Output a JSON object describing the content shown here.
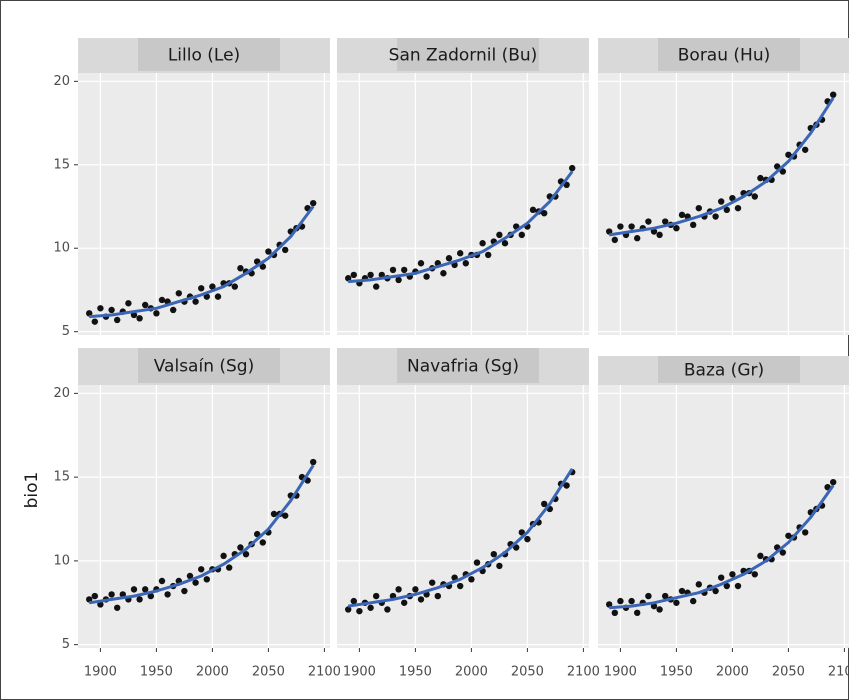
{
  "chart_data": [
    {
      "type": "scatter",
      "title": "Lillo (Le)",
      "x": [
        1890,
        1895,
        1900,
        1905,
        1910,
        1915,
        1920,
        1925,
        1930,
        1935,
        1940,
        1945,
        1950,
        1955,
        1960,
        1965,
        1970,
        1975,
        1980,
        1985,
        1990,
        1995,
        2000,
        2005,
        2010,
        2015,
        2020,
        2025,
        2030,
        2035,
        2040,
        2045,
        2050,
        2055,
        2060,
        2065,
        2070,
        2075,
        2080,
        2085,
        2090
      ],
      "values": [
        6.1,
        5.6,
        6.4,
        5.9,
        6.3,
        5.7,
        6.2,
        6.7,
        6.0,
        5.8,
        6.6,
        6.4,
        6.1,
        6.9,
        6.8,
        6.3,
        7.3,
        6.8,
        7.1,
        6.8,
        7.6,
        7.1,
        7.7,
        7.1,
        7.9,
        7.9,
        7.7,
        8.8,
        8.6,
        8.5,
        9.2,
        8.9,
        9.8,
        9.6,
        10.2,
        9.9,
        11.0,
        11.2,
        11.3,
        12.4,
        12.7
      ],
      "fit_x": [
        1890,
        1910,
        1930,
        1950,
        1970,
        1990,
        2010,
        2030,
        2050,
        2070,
        2090
      ],
      "fit_values": [
        5.9,
        6.0,
        6.2,
        6.4,
        6.8,
        7.2,
        7.7,
        8.5,
        9.4,
        10.7,
        12.5
      ],
      "color": "#111111",
      "fit_color": "#3a66b5",
      "xlim": [
        1880,
        2105
      ],
      "ylim": [
        4.8,
        20.5
      ],
      "xticks": [
        1900,
        1950,
        2000,
        2050,
        2100
      ],
      "yticks": [
        5,
        10,
        15,
        20
      ],
      "grid": true
    },
    {
      "type": "scatter",
      "title": "San Zadornil (Bu)",
      "x": [
        1890,
        1895,
        1900,
        1905,
        1910,
        1915,
        1920,
        1925,
        1930,
        1935,
        1940,
        1945,
        1950,
        1955,
        1960,
        1965,
        1970,
        1975,
        1980,
        1985,
        1990,
        1995,
        2000,
        2005,
        2010,
        2015,
        2020,
        2025,
        2030,
        2035,
        2040,
        2045,
        2050,
        2055,
        2060,
        2065,
        2070,
        2075,
        2080,
        2085,
        2090
      ],
      "values": [
        8.2,
        8.4,
        7.9,
        8.2,
        8.4,
        7.7,
        8.4,
        8.2,
        8.7,
        8.1,
        8.7,
        8.3,
        8.6,
        9.1,
        8.3,
        8.8,
        9.1,
        8.5,
        9.4,
        9.0,
        9.7,
        9.1,
        9.6,
        9.6,
        10.3,
        9.6,
        10.4,
        10.8,
        10.3,
        10.8,
        11.3,
        10.8,
        11.3,
        12.3,
        12.2,
        12.1,
        13.1,
        13.1,
        14.0,
        13.8,
        14.8
      ],
      "fit_x": [
        1890,
        1910,
        1930,
        1950,
        1970,
        1990,
        2010,
        2030,
        2050,
        2070,
        2090
      ],
      "fit_values": [
        8.0,
        8.1,
        8.3,
        8.5,
        8.9,
        9.3,
        9.8,
        10.6,
        11.5,
        12.8,
        14.6
      ],
      "color": "#111111",
      "fit_color": "#3a66b5",
      "xlim": [
        1880,
        2105
      ],
      "ylim": [
        4.8,
        20.5
      ],
      "xticks": [
        1900,
        1950,
        2000,
        2050,
        2100
      ],
      "yticks": [
        5,
        10,
        15,
        20
      ],
      "grid": true
    },
    {
      "type": "scatter",
      "title": "Borau (Hu)",
      "x": [
        1890,
        1895,
        1900,
        1905,
        1910,
        1915,
        1920,
        1925,
        1930,
        1935,
        1940,
        1945,
        1950,
        1955,
        1960,
        1965,
        1970,
        1975,
        1980,
        1985,
        1990,
        1995,
        2000,
        2005,
        2010,
        2015,
        2020,
        2025,
        2030,
        2035,
        2040,
        2045,
        2050,
        2055,
        2060,
        2065,
        2070,
        2075,
        2080,
        2085,
        2090
      ],
      "values": [
        11.0,
        10.5,
        11.3,
        10.8,
        11.3,
        10.6,
        11.2,
        11.6,
        11.0,
        10.8,
        11.6,
        11.4,
        11.2,
        12.0,
        11.9,
        11.4,
        12.4,
        11.9,
        12.2,
        11.9,
        12.8,
        12.3,
        13.0,
        12.4,
        13.3,
        13.3,
        13.1,
        14.2,
        14.1,
        14.1,
        14.9,
        14.6,
        15.6,
        15.5,
        16.2,
        15.9,
        17.2,
        17.4,
        17.7,
        18.8,
        19.2
      ],
      "fit_x": [
        1890,
        1910,
        1930,
        1950,
        1970,
        1990,
        2010,
        2030,
        2050,
        2070,
        2090
      ],
      "fit_values": [
        10.8,
        11.0,
        11.2,
        11.5,
        11.9,
        12.4,
        13.1,
        14.0,
        15.2,
        16.9,
        19.0
      ],
      "color": "#111111",
      "fit_color": "#3a66b5",
      "xlim": [
        1880,
        2105
      ],
      "ylim": [
        4.8,
        20.5
      ],
      "xticks": [
        1900,
        1950,
        2000,
        2050,
        2100
      ],
      "yticks": [
        5,
        10,
        15,
        20
      ],
      "grid": true
    },
    {
      "type": "scatter",
      "title": "Valsaín (Sg)",
      "ylabel": "bio1",
      "x": [
        1890,
        1895,
        1900,
        1905,
        1910,
        1915,
        1920,
        1925,
        1930,
        1935,
        1940,
        1945,
        1950,
        1955,
        1960,
        1965,
        1970,
        1975,
        1980,
        1985,
        1990,
        1995,
        2000,
        2005,
        2010,
        2015,
        2020,
        2025,
        2030,
        2035,
        2040,
        2045,
        2050,
        2055,
        2060,
        2065,
        2070,
        2075,
        2080,
        2085,
        2090
      ],
      "values": [
        7.7,
        7.9,
        7.4,
        7.7,
        8.0,
        7.2,
        8.0,
        7.7,
        8.3,
        7.7,
        8.3,
        7.9,
        8.3,
        8.8,
        8.0,
        8.5,
        8.8,
        8.2,
        9.1,
        8.7,
        9.5,
        8.9,
        9.5,
        9.5,
        10.3,
        9.6,
        10.4,
        10.8,
        10.4,
        11.0,
        11.6,
        11.1,
        11.7,
        12.8,
        12.8,
        12.7,
        13.9,
        13.9,
        15.0,
        14.8,
        15.9
      ],
      "fit_x": [
        1890,
        1910,
        1930,
        1950,
        1970,
        1990,
        2010,
        2030,
        2050,
        2070,
        2090
      ],
      "fit_values": [
        7.5,
        7.7,
        7.9,
        8.2,
        8.6,
        9.1,
        9.8,
        10.7,
        11.9,
        13.6,
        15.7
      ],
      "color": "#111111",
      "fit_color": "#3a66b5",
      "xlim": [
        1880,
        2105
      ],
      "ylim": [
        4.8,
        20.5
      ],
      "xticks": [
        1900,
        1950,
        2000,
        2050,
        2100
      ],
      "yticks": [
        5,
        10,
        15,
        20
      ],
      "grid": true
    },
    {
      "type": "scatter",
      "title": "Navafria (Sg)",
      "x": [
        1890,
        1895,
        1900,
        1905,
        1910,
        1915,
        1920,
        1925,
        1930,
        1935,
        1940,
        1945,
        1950,
        1955,
        1960,
        1965,
        1970,
        1975,
        1980,
        1985,
        1990,
        1995,
        2000,
        2005,
        2010,
        2015,
        2020,
        2025,
        2030,
        2035,
        2040,
        2045,
        2050,
        2055,
        2060,
        2065,
        2070,
        2075,
        2080,
        2085,
        2090
      ],
      "values": [
        7.1,
        7.6,
        7.0,
        7.5,
        7.2,
        7.9,
        7.5,
        7.1,
        7.9,
        8.3,
        7.5,
        7.9,
        8.3,
        7.7,
        8.0,
        8.7,
        7.9,
        8.6,
        8.5,
        9.0,
        8.5,
        9.2,
        8.9,
        9.9,
        9.4,
        9.8,
        10.4,
        9.7,
        10.4,
        11.0,
        10.8,
        11.7,
        11.3,
        12.2,
        12.3,
        13.4,
        13.1,
        13.7,
        14.6,
        14.5,
        15.3
      ],
      "fit_x": [
        1890,
        1910,
        1930,
        1950,
        1970,
        1990,
        2010,
        2030,
        2050,
        2070,
        2090
      ],
      "fit_values": [
        7.3,
        7.5,
        7.7,
        8.0,
        8.4,
        8.9,
        9.6,
        10.5,
        11.7,
        13.4,
        15.5
      ],
      "color": "#111111",
      "fit_color": "#3a66b5",
      "xlim": [
        1880,
        2105
      ],
      "ylim": [
        4.8,
        20.5
      ],
      "xticks": [
        1900,
        1950,
        2000,
        2050,
        2100
      ],
      "yticks": [
        5,
        10,
        15,
        20
      ],
      "grid": true
    },
    {
      "type": "scatter",
      "title": "Baza (Gr)",
      "x": [
        1890,
        1895,
        1900,
        1905,
        1910,
        1915,
        1920,
        1925,
        1930,
        1935,
        1940,
        1945,
        1950,
        1955,
        1960,
        1965,
        1970,
        1975,
        1980,
        1985,
        1990,
        1995,
        2000,
        2005,
        2010,
        2015,
        2020,
        2025,
        2030,
        2035,
        2040,
        2045,
        2050,
        2055,
        2060,
        2065,
        2070,
        2075,
        2080,
        2085,
        2090
      ],
      "values": [
        7.4,
        6.9,
        7.6,
        7.2,
        7.6,
        6.9,
        7.5,
        7.9,
        7.3,
        7.1,
        7.9,
        7.7,
        7.5,
        8.2,
        8.1,
        7.6,
        8.6,
        8.1,
        8.4,
        8.2,
        9.0,
        8.5,
        9.2,
        8.5,
        9.4,
        9.4,
        9.2,
        10.3,
        10.1,
        10.1,
        10.8,
        10.5,
        11.5,
        11.4,
        12.0,
        11.7,
        12.9,
        13.1,
        13.3,
        14.4,
        14.7
      ],
      "fit_x": [
        1890,
        1910,
        1930,
        1950,
        1970,
        1990,
        2010,
        2030,
        2050,
        2070,
        2090
      ],
      "fit_values": [
        7.2,
        7.3,
        7.5,
        7.8,
        8.1,
        8.6,
        9.2,
        10.0,
        11.1,
        12.6,
        14.5
      ],
      "color": "#111111",
      "fit_color": "#3a66b5",
      "xlim": [
        1880,
        2105
      ],
      "ylim": [
        4.8,
        20.5
      ],
      "xticks": [
        1900,
        1950,
        2000,
        2050,
        2100
      ],
      "yticks": [
        5,
        10,
        15,
        20
      ],
      "grid": true
    }
  ]
}
